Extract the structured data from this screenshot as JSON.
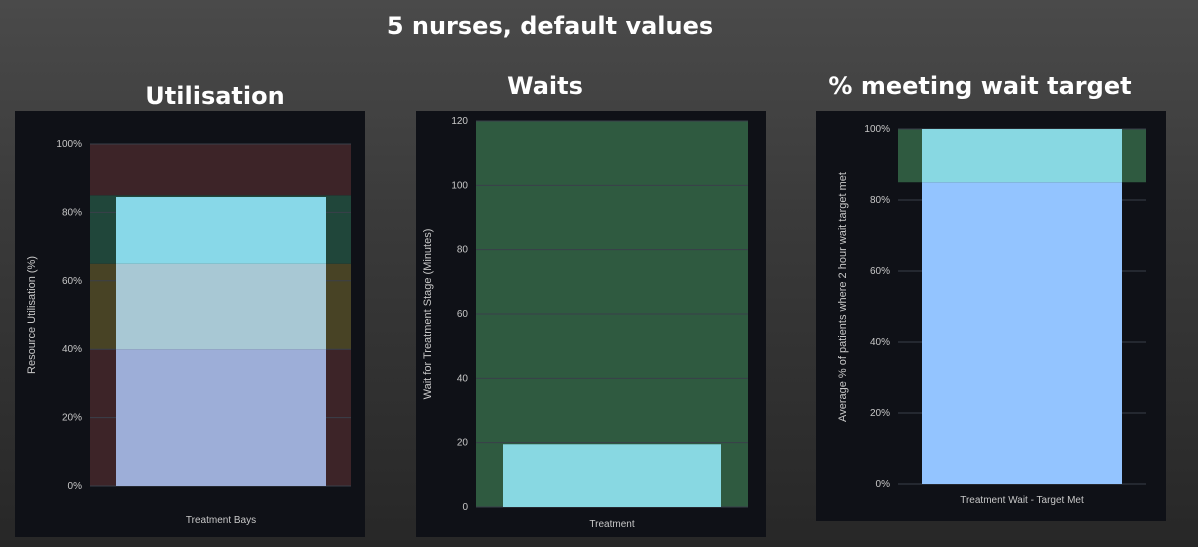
{
  "page": {
    "title": "5 nurses, default values"
  },
  "chart_data": [
    {
      "type": "bar",
      "title": "Utilisation",
      "categories": [
        "Treatment Bays"
      ],
      "values": [
        84.5
      ],
      "xlabel": "",
      "ylabel": "Resource Utilisation (%)",
      "ylim": [
        0,
        100
      ],
      "yticks": [
        "0%",
        "20%",
        "40%",
        "60%",
        "80%",
        "100%"
      ],
      "ytick_values": [
        0,
        20,
        40,
        60,
        80,
        100
      ],
      "bands": [
        {
          "from": 0,
          "to": 40,
          "color": "#3d2428"
        },
        {
          "from": 40,
          "to": 65,
          "color": "#484325"
        },
        {
          "from": 65,
          "to": 85,
          "color": "#20463a"
        },
        {
          "from": 85,
          "to": 100,
          "color": "#3d2428"
        }
      ],
      "bar_segments": [
        {
          "from": 0,
          "to": 40,
          "color": "#9daed8"
        },
        {
          "from": 40,
          "to": 65,
          "color": "#a8c8d4"
        },
        {
          "from": 65,
          "to": 84.5,
          "color": "#88d8e8"
        }
      ],
      "grid": true
    },
    {
      "type": "bar",
      "title": "Waits",
      "categories": [
        "Treatment"
      ],
      "values": [
        19.5
      ],
      "xlabel": "",
      "ylabel": "Wait for Treatment Stage (Minutes)",
      "ylim": [
        0,
        120
      ],
      "yticks": [
        "0",
        "20",
        "40",
        "60",
        "80",
        "100",
        "120"
      ],
      "ytick_values": [
        0,
        20,
        40,
        60,
        80,
        100,
        120
      ],
      "bands": [
        {
          "from": 0,
          "to": 120,
          "color": "#2f5a40"
        }
      ],
      "bar_segments": [
        {
          "from": 0,
          "to": 19.5,
          "color": "#88d8e2"
        }
      ],
      "grid": true
    },
    {
      "type": "bar",
      "title": "% meeting wait target",
      "categories": [
        "Treatment Wait - Target Met"
      ],
      "values": [
        100
      ],
      "xlabel": "",
      "ylabel": "Average % of patients where 2 hour wait target met",
      "ylim": [
        0,
        100
      ],
      "yticks": [
        "0%",
        "20%",
        "40%",
        "60%",
        "80%",
        "100%"
      ],
      "ytick_values": [
        0,
        20,
        40,
        60,
        80,
        100
      ],
      "bands": [
        {
          "from": 85,
          "to": 100,
          "color": "#2f5a40"
        }
      ],
      "bar_segments": [
        {
          "from": 0,
          "to": 85,
          "color": "#93c4ff"
        },
        {
          "from": 85,
          "to": 100,
          "color": "#88d8e2"
        }
      ],
      "grid": true
    }
  ],
  "colors": {
    "panel_bg": "#0f1117",
    "tick_text": "#c8c8c8",
    "grid": "#3a3f4a"
  }
}
